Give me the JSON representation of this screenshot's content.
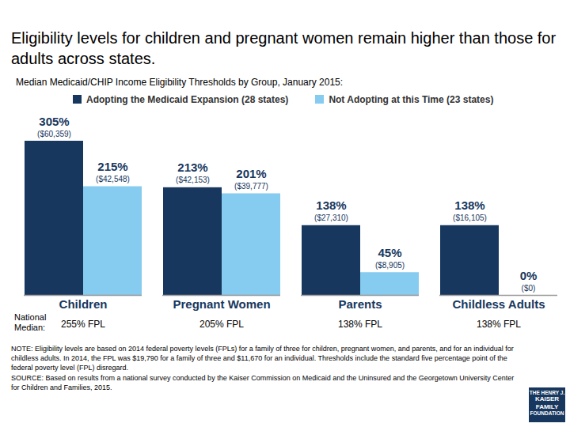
{
  "chart_data": {
    "type": "bar",
    "title": "Eligibility levels for children and pregnant women remain higher than those for adults across states.",
    "subtitle": "Median Medicaid/CHIP Income Eligibility Thresholds by Group, January 2015:",
    "categories": [
      "Children",
      "Pregnant Women",
      "Parents",
      "Childless Adults"
    ],
    "series": [
      {
        "name": "Adopting the Medicaid Expansion (28 states)",
        "color": "#17375E",
        "values": [
          305,
          213,
          138,
          138
        ],
        "value_labels": [
          "305%",
          "213%",
          "138%",
          "138%"
        ],
        "dollar_labels": [
          "($60,359)",
          "($42,153)",
          "($27,310)",
          "($16,105)"
        ]
      },
      {
        "name": "Not Adopting at this Time (23 states)",
        "color": "#86CBF0",
        "values": [
          215,
          201,
          45,
          0
        ],
        "value_labels": [
          "215%",
          "201%",
          "45%",
          "0%"
        ],
        "dollar_labels": [
          "($42,548)",
          "($39,777)",
          "($8,905)",
          "($0)"
        ]
      }
    ],
    "national_median": {
      "label": "National Median:",
      "labels": [
        "255% FPL",
        "205% FPL",
        "138% FPL",
        "138% FPL"
      ]
    },
    "ylim": [
      0,
      305
    ],
    "tick_labels": "x",
    "data_labels": true,
    "legend": "top",
    "notes": [
      "NOTE: Eligibility levels are based on 2014 federal poverty levels (FPLs) for a family of three for children, pregnant women, and parents, and for an individual for childless adults. In 2014, the FPL was $19,790 for a family of three and $11,670 for an individual. Thresholds include the standard five percentage point of the federal poverty level (FPL) disregard.",
      "SOURCE: Based on results from a national survey conducted by the Kaiser Commission on Medicaid and the Uninsured and the Georgetown University Center for Children and Families, 2015."
    ],
    "logo": [
      "THE HENRY J.",
      "KAISER",
      "FAMILY",
      "FOUNDATION"
    ]
  }
}
